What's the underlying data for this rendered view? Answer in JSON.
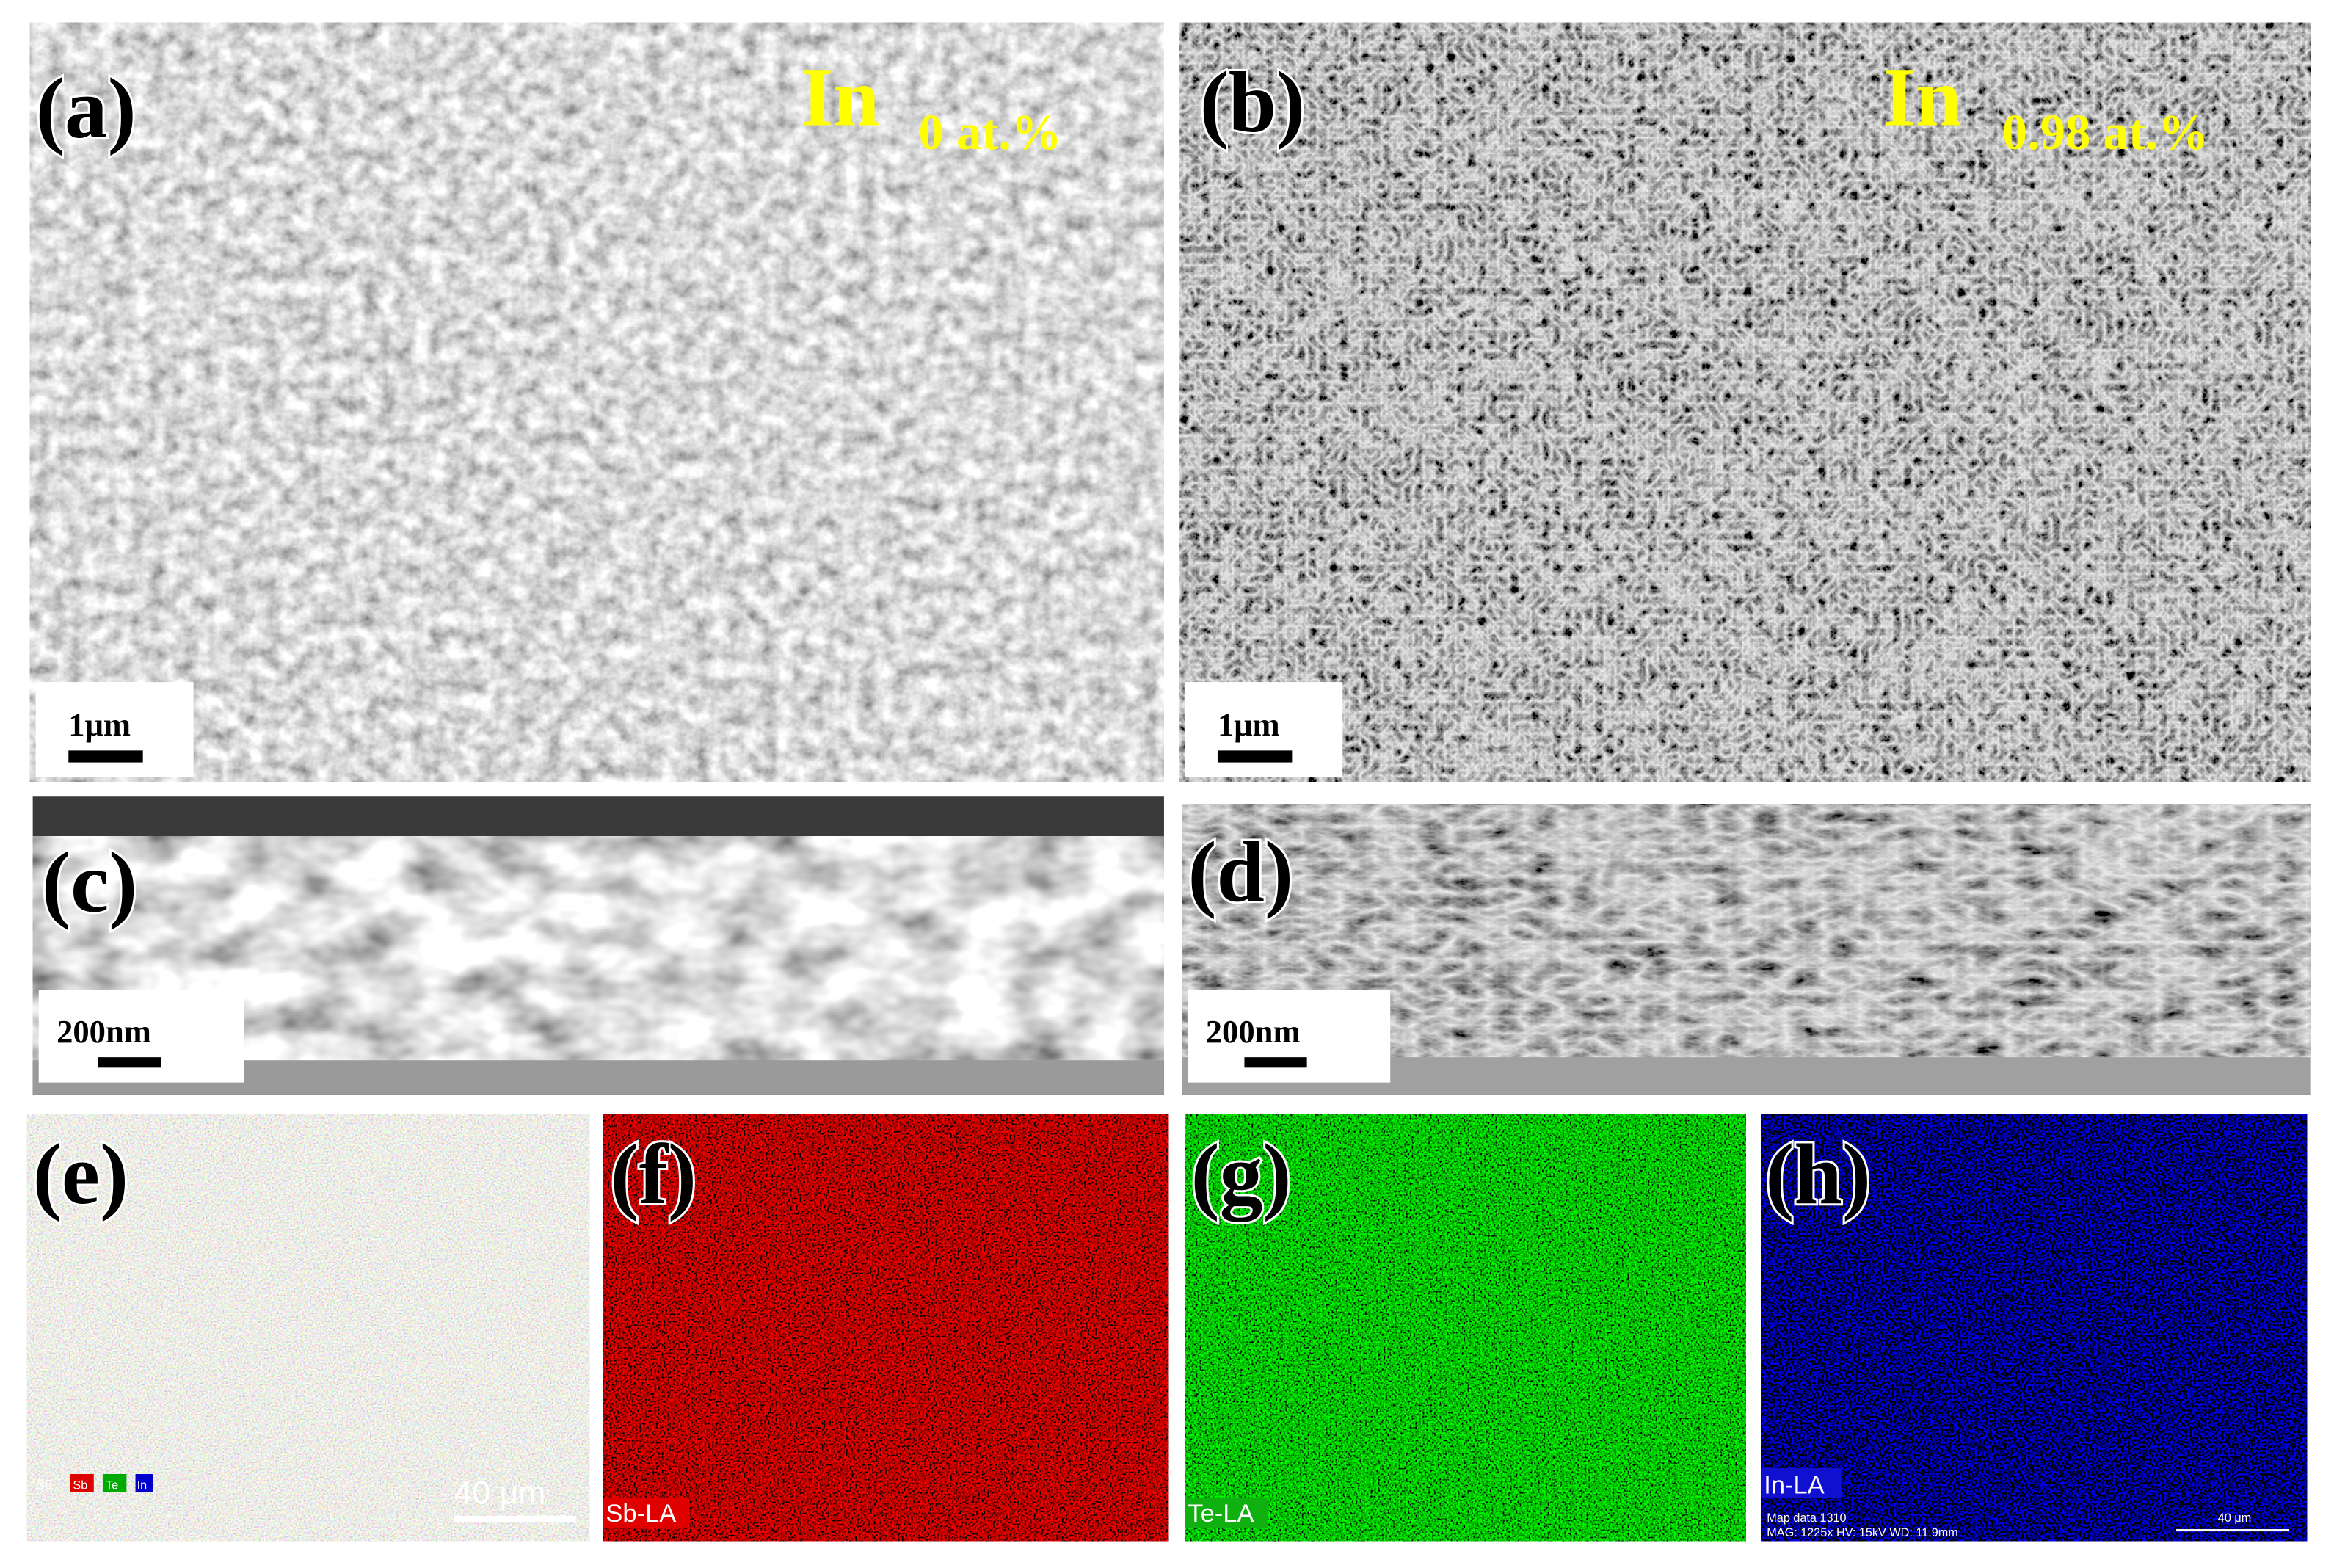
{
  "panels": [
    {
      "label": "(a)",
      "element": "In",
      "content": "0 at.%",
      "scale": "1μm"
    },
    {
      "label": "(b)",
      "element": "In",
      "content": "0.98 at.%",
      "scale": "1μm"
    },
    {
      "label": "(c)",
      "scale": "200nm"
    },
    {
      "label": "(d)",
      "scale": "200nm"
    },
    {
      "label": "(e)",
      "legend": [
        "SE",
        "Sb",
        "Te",
        "In"
      ],
      "scale": "40 μm"
    },
    {
      "label": "(f)",
      "channel": "Sb-LA"
    },
    {
      "label": "(g)",
      "channel": "Te-LA"
    },
    {
      "label": "(h)",
      "channel": "In-LA",
      "info": [
        "Map data 1310",
        "MAG: 1225x  HV: 15kV  WD: 11.9mm"
      ],
      "scale": "40 μm"
    }
  ]
}
